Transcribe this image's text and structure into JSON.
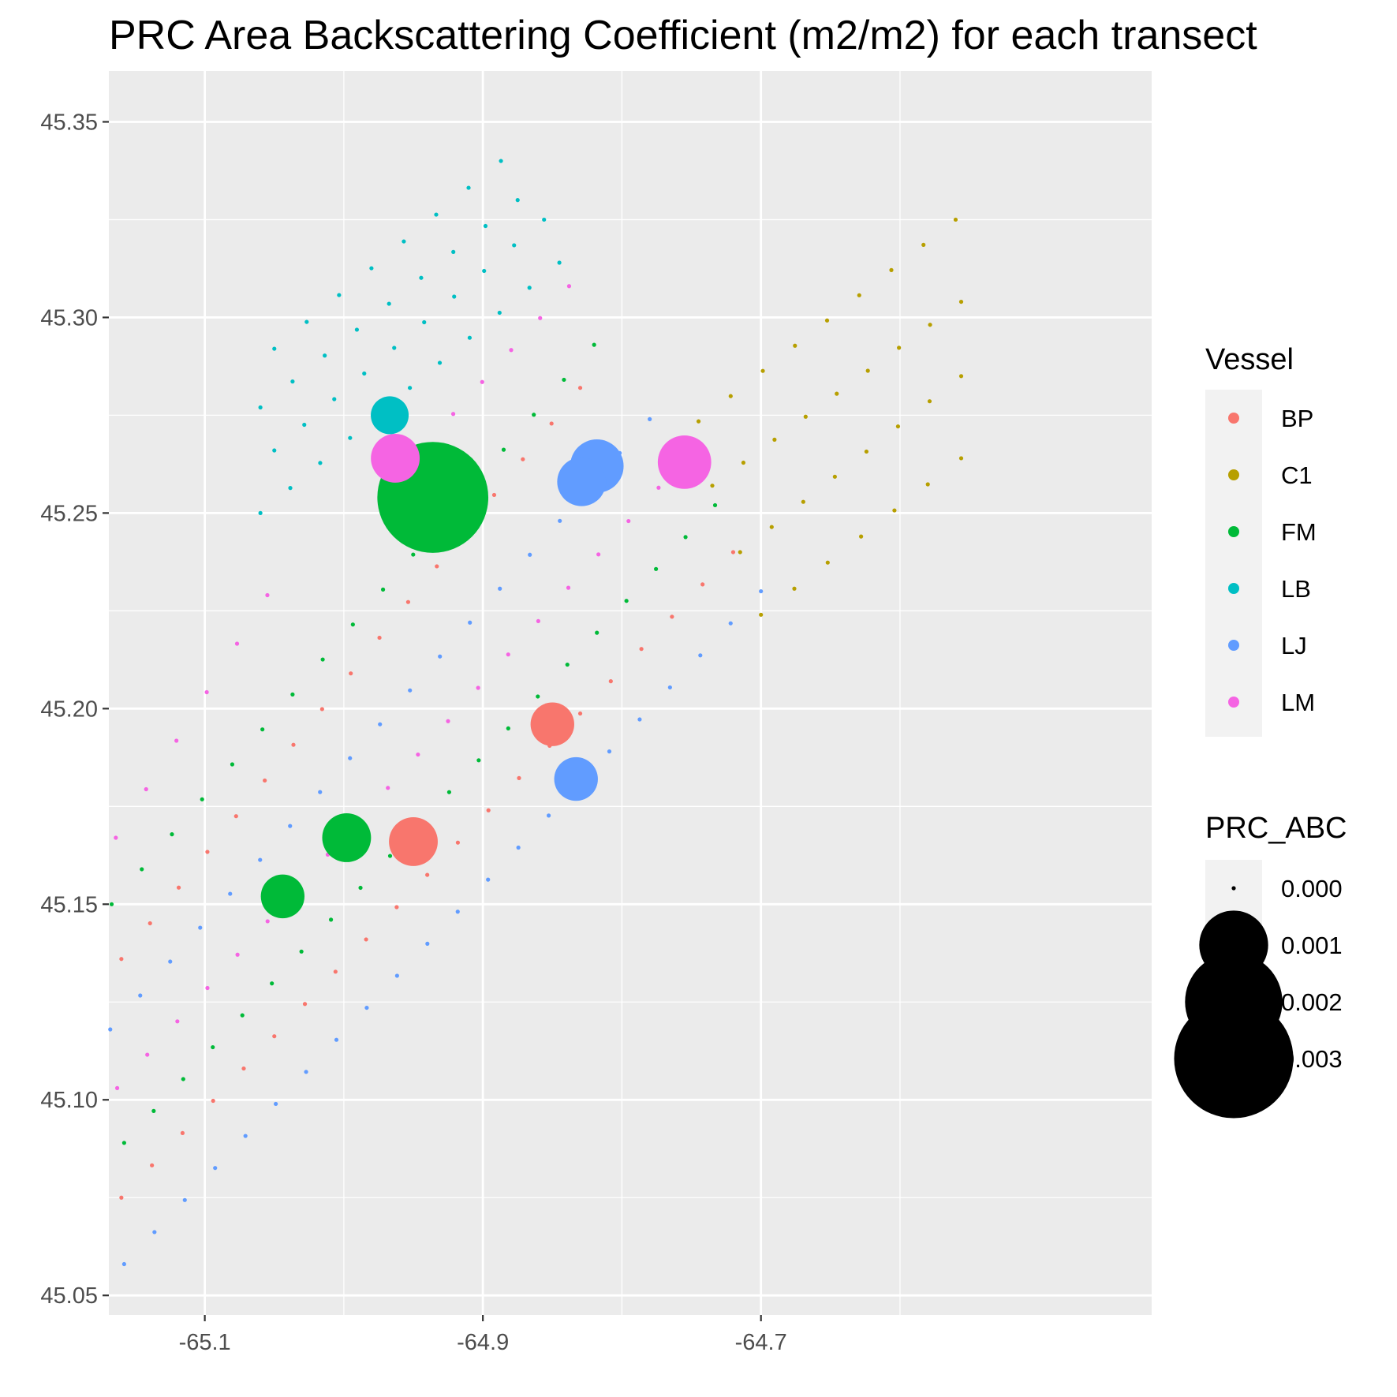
{
  "chart_data": {
    "type": "scatter",
    "title": "PRC Area Backscattering Coefficient (m2/m2) for each transect",
    "xlabel": "",
    "ylabel": "",
    "xlim": [
      -65.169,
      -64.419
    ],
    "ylim": [
      45.045,
      45.363
    ],
    "x_ticks": [
      -65.1,
      -64.9,
      -64.7
    ],
    "x_tick_labels": [
      "-65.1",
      "-64.9",
      "-64.7"
    ],
    "x_minor_breaks": [
      -65.2,
      -65.0,
      -64.8,
      -64.6
    ],
    "y_ticks": [
      45.05,
      45.1,
      45.15,
      45.2,
      45.25,
      45.3,
      45.35
    ],
    "y_tick_labels": [
      "45.05",
      "45.10",
      "45.15",
      "45.20",
      "45.25",
      "45.30",
      "45.35"
    ],
    "y_minor_breaks": [
      45.075,
      45.125,
      45.175,
      45.225,
      45.275,
      45.325
    ],
    "grid": true,
    "legend_position": "right",
    "color_legend": {
      "title": "Vessel",
      "entries": [
        {
          "name": "BP",
          "color": "#F8766D"
        },
        {
          "name": "C1",
          "color": "#B79F00"
        },
        {
          "name": "FM",
          "color": "#00BA38"
        },
        {
          "name": "LB",
          "color": "#00BFC4"
        },
        {
          "name": "LJ",
          "color": "#619CFF"
        },
        {
          "name": "LM",
          "color": "#F564E3"
        }
      ]
    },
    "size_legend": {
      "title": "PRC_ABC",
      "entries": [
        {
          "label": "0.000",
          "value": 0.0
        },
        {
          "label": "0.001",
          "value": 0.001
        },
        {
          "label": "0.002",
          "value": 0.002
        },
        {
          "label": "0.003",
          "value": 0.003
        }
      ]
    },
    "series": [
      {
        "name": "BP",
        "color": "#F8766D",
        "transects": [
          {
            "start": [
              -65.16,
              45.075
            ],
            "end": [
              -64.72,
              45.24
            ]
          },
          {
            "start": [
              -65.16,
              45.136
            ],
            "end": [
              -64.83,
              45.282
            ]
          }
        ]
      },
      {
        "name": "C1",
        "color": "#B79F00",
        "transects": [
          {
            "start": [
              -64.7,
              45.224
            ],
            "end": [
              -64.556,
              45.264
            ]
          },
          {
            "start": [
              -64.715,
              45.24
            ],
            "end": [
              -64.556,
              45.285
            ]
          },
          {
            "start": [
              -64.735,
              45.257
            ],
            "end": [
              -64.556,
              45.304
            ]
          },
          {
            "start": [
              -64.768,
              45.267
            ],
            "end": [
              -64.56,
              45.325
            ]
          }
        ]
      },
      {
        "name": "FM",
        "color": "#00BA38",
        "transects": [
          {
            "start": [
              -65.158,
              45.089
            ],
            "end": [
              -64.733,
              45.252
            ]
          },
          {
            "start": [
              -65.167,
              45.15
            ],
            "end": [
              -64.82,
              45.293
            ]
          }
        ]
      },
      {
        "name": "LB",
        "color": "#00BFC4",
        "transects": [
          {
            "start": [
              -65.06,
              45.25
            ],
            "end": [
              -64.845,
              45.314
            ]
          },
          {
            "start": [
              -65.05,
              45.266
            ],
            "end": [
              -64.856,
              45.325
            ]
          },
          {
            "start": [
              -65.06,
              45.277
            ],
            "end": [
              -64.875,
              45.33
            ]
          },
          {
            "start": [
              -65.05,
              45.292
            ],
            "end": [
              -64.887,
              45.34
            ]
          }
        ]
      },
      {
        "name": "LJ",
        "color": "#619CFF",
        "transects": [
          {
            "start": [
              -65.158,
              45.058
            ],
            "end": [
              -64.7,
              45.23
            ]
          },
          {
            "start": [
              -65.168,
              45.118
            ],
            "end": [
              -64.78,
              45.274
            ]
          }
        ]
      },
      {
        "name": "LM",
        "color": "#F564E3",
        "transects": [
          {
            "start": [
              -65.163,
              45.103
            ],
            "end": [
              -64.752,
              45.265
            ]
          },
          {
            "start": [
              -65.164,
              45.167
            ],
            "end": [
              -65.055,
              45.229
            ]
          },
          {
            "start": [
              -64.963,
              45.259
            ],
            "end": [
              -64.838,
              45.308
            ]
          }
        ]
      }
    ],
    "notable_points": [
      {
        "vessel": "FM",
        "x": -64.936,
        "y": 45.254,
        "PRC_ABC": 0.0026
      },
      {
        "vessel": "LJ",
        "x": -64.818,
        "y": 45.262,
        "PRC_ABC": 0.0006
      },
      {
        "vessel": "LJ",
        "x": -64.829,
        "y": 45.258,
        "PRC_ABC": 0.0005
      },
      {
        "vessel": "LM",
        "x": -64.755,
        "y": 45.263,
        "PRC_ABC": 0.0006
      },
      {
        "vessel": "LM",
        "x": -64.963,
        "y": 45.264,
        "PRC_ABC": 0.0005
      },
      {
        "vessel": "LB",
        "x": -64.967,
        "y": 45.275,
        "PRC_ABC": 0.0003
      },
      {
        "vessel": "BP",
        "x": -64.95,
        "y": 45.166,
        "PRC_ABC": 0.0005
      },
      {
        "vessel": "BP",
        "x": -64.85,
        "y": 45.196,
        "PRC_ABC": 0.0004
      },
      {
        "vessel": "FM",
        "x": -64.998,
        "y": 45.167,
        "PRC_ABC": 0.0005
      },
      {
        "vessel": "FM",
        "x": -65.044,
        "y": 45.152,
        "PRC_ABC": 0.0004
      },
      {
        "vessel": "LJ",
        "x": -64.833,
        "y": 45.182,
        "PRC_ABC": 0.0004
      }
    ]
  }
}
